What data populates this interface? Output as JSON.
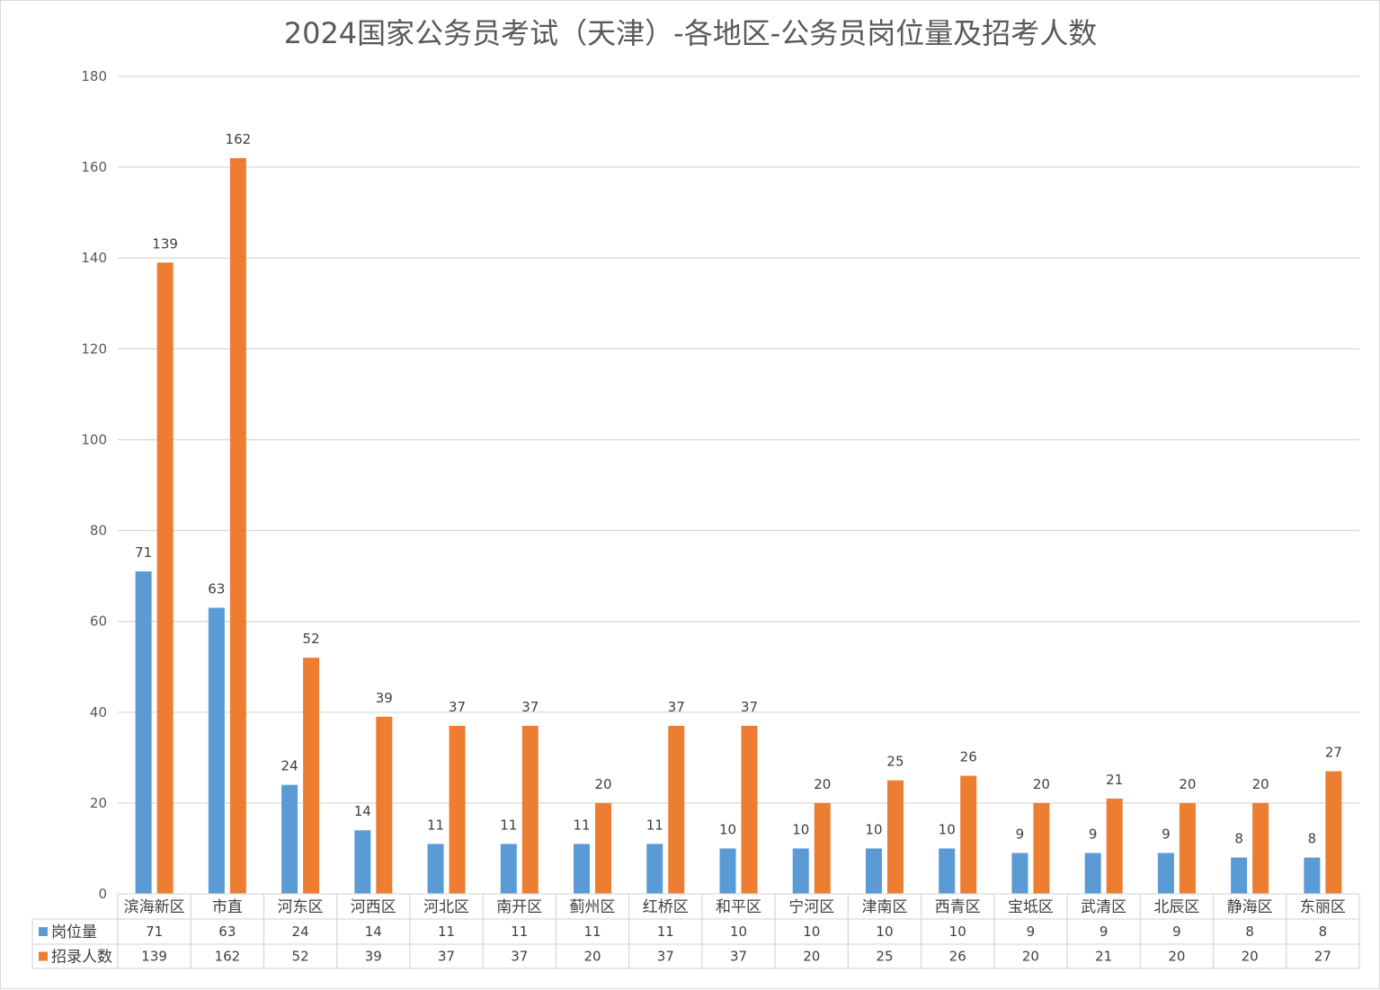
{
  "chart_data": {
    "type": "bar",
    "title": "2024国家公务员考试（天津）-各地区-公务员岗位量及招考人数",
    "categories": [
      "滨海新区",
      "市直",
      "河东区",
      "河西区",
      "河北区",
      "南开区",
      "蓟州区",
      "红桥区",
      "和平区",
      "宁河区",
      "津南区",
      "西青区",
      "宝坻区",
      "武清区",
      "北辰区",
      "静海区",
      "东丽区"
    ],
    "series": [
      {
        "name": "岗位量",
        "color": "#5b9bd5",
        "values": [
          71,
          63,
          24,
          14,
          11,
          11,
          11,
          11,
          10,
          10,
          10,
          10,
          9,
          9,
          9,
          8,
          8
        ]
      },
      {
        "name": "招录人数",
        "color": "#ed7d31",
        "values": [
          139,
          162,
          52,
          39,
          37,
          37,
          20,
          37,
          37,
          20,
          25,
          26,
          20,
          21,
          20,
          20,
          27
        ]
      }
    ],
    "yticks": [
      "0",
      "20",
      "40",
      "60",
      "80",
      "100",
      "120",
      "140",
      "160",
      "180"
    ],
    "ylim": [
      0,
      180
    ],
    "grid": true,
    "legend": "data-table",
    "xlabel": "",
    "ylabel": ""
  }
}
